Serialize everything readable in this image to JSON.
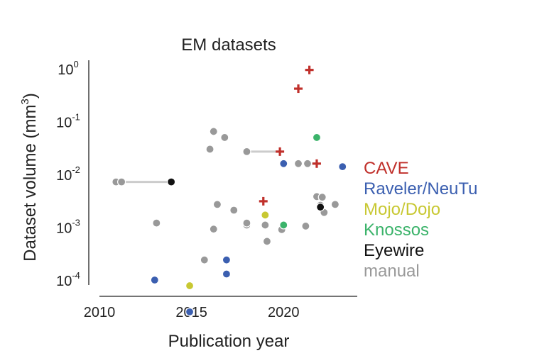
{
  "chart_data": {
    "type": "scatter",
    "title": "EM datasets",
    "xlabel": "Publication year",
    "ylabel": "Dataset volume (mm",
    "ylabel_sup": "3",
    "ylabel_close": ")",
    "xlim": [
      2010,
      2024
    ],
    "xticks": [
      "2010",
      "2015",
      "2020"
    ],
    "xtick_values": [
      2010,
      2015,
      2020
    ],
    "y_log": true,
    "ylim_exp": [
      -4.8,
      0.2
    ],
    "yticks": [
      {
        "base": "10",
        "exp": "0",
        "value_exp": 0
      },
      {
        "base": "10",
        "exp": "-1",
        "value_exp": -1
      },
      {
        "base": "10",
        "exp": "-2",
        "value_exp": -2
      },
      {
        "base": "10",
        "exp": "-3",
        "value_exp": -3
      },
      {
        "base": "10",
        "exp": "-4",
        "value_exp": -4
      }
    ],
    "legend_position": "right",
    "series": [
      {
        "name": "CAVE",
        "color": "#c0302b",
        "marker": "plus",
        "points": [
          [
            2021.4,
            0.95
          ],
          [
            2020.8,
            0.42
          ],
          [
            2018.9,
            0.0031
          ],
          [
            2019.8,
            0.027
          ],
          [
            2021.8,
            0.016
          ]
        ]
      },
      {
        "name": "Raveler/NeuTu",
        "color": "#3b5fb0",
        "marker": "circle",
        "points": [
          [
            2013.0,
            0.0001
          ],
          [
            2014.9,
            2.5e-05
          ],
          [
            2016.9,
            0.00024
          ],
          [
            2016.9,
            0.00013
          ],
          [
            2020.0,
            0.016
          ],
          [
            2023.2,
            0.014
          ]
        ]
      },
      {
        "name": "Mojo/Dojo",
        "color": "#c8c832",
        "marker": "circle",
        "points": [
          [
            2014.9,
            7.8e-05
          ],
          [
            2019.0,
            0.0017
          ]
        ]
      },
      {
        "name": "Knossos",
        "color": "#3bb36a",
        "marker": "circle",
        "points": [
          [
            2021.8,
            0.05
          ],
          [
            2020.0,
            0.0011
          ]
        ]
      },
      {
        "name": "Eyewire",
        "color": "#111111",
        "marker": "circle",
        "points": [
          [
            2013.9,
            0.0072
          ],
          [
            2022.0,
            0.0024
          ]
        ]
      },
      {
        "name": "manual",
        "color": "#999999",
        "marker": "circle",
        "points": [
          [
            2010.9,
            0.0072
          ],
          [
            2011.2,
            0.0072
          ],
          [
            2013.1,
            0.0012
          ],
          [
            2016.2,
            0.065
          ],
          [
            2016.8,
            0.05
          ],
          [
            2016.0,
            0.03
          ],
          [
            2018.0,
            0.027
          ],
          [
            2016.4,
            0.0027
          ],
          [
            2016.2,
            0.00092
          ],
          [
            2017.3,
            0.0021
          ],
          [
            2018.0,
            0.0011
          ],
          [
            2018.0,
            0.0012
          ],
          [
            2015.7,
            0.00024
          ],
          [
            2019.1,
            0.00054
          ],
          [
            2019.0,
            0.0011
          ],
          [
            2019.9,
            0.0009
          ],
          [
            2020.8,
            0.016
          ],
          [
            2021.3,
            0.016
          ],
          [
            2021.2,
            0.00105
          ],
          [
            2021.8,
            0.0038
          ],
          [
            2022.1,
            0.0037
          ],
          [
            2022.0,
            0.0026
          ],
          [
            2022.2,
            0.0019
          ],
          [
            2022.8,
            0.0027
          ]
        ]
      }
    ],
    "connectors": [
      {
        "from": [
          2010.9,
          0.0072
        ],
        "to": [
          2013.9,
          0.0072
        ]
      },
      {
        "from": [
          2018.0,
          0.027
        ],
        "to": [
          2019.8,
          0.027
        ]
      },
      {
        "from": [
          2021.3,
          0.016
        ],
        "to": [
          2021.8,
          0.016
        ]
      }
    ]
  }
}
